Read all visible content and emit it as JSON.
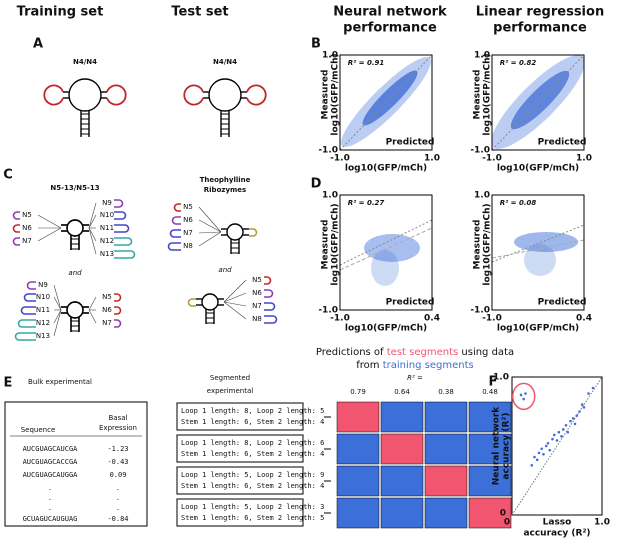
{
  "headers": {
    "training": "Training set",
    "test": "Test set",
    "nn": [
      "Neural network",
      "performance"
    ],
    "lr": [
      "Linear regression",
      "performance"
    ]
  },
  "panels": {
    "A": "A",
    "B": "B",
    "C": "C",
    "D": "D",
    "E": "E",
    "F": "F"
  },
  "A": {
    "left": "N4/N4",
    "right": "N4/N4"
  },
  "B": {
    "r2": [
      "R² = 0.91",
      "R² = 0.82"
    ],
    "ylabel": [
      "Measured",
      "log10(GFP/mCh)"
    ],
    "xlabel": [
      "Predicted",
      "log10(GFP/mCh)"
    ],
    "xticks": [
      "-1.0",
      "1.0"
    ],
    "yticks": [
      "-1.0",
      "1.0"
    ]
  },
  "C": {
    "title": "N5-13/N5-13",
    "left_small": [
      "N5",
      "N6",
      "N7"
    ],
    "left_large": [
      "N9",
      "N10",
      "N11",
      "N12",
      "N13"
    ],
    "and": "and",
    "ribozyme_title": [
      "Theophylline",
      "Ribozymes"
    ],
    "ribozyme_loops": [
      "N5",
      "N6",
      "N7",
      "N8"
    ]
  },
  "D": {
    "r2": [
      "R² = 0.27",
      "R² = 0.08"
    ],
    "ylabel": [
      "Measured",
      "log10(GFP/mCh)"
    ],
    "xlabel": [
      "Predicted",
      "log10(GFP/mCh)"
    ],
    "xticks": [
      "-1.0",
      "0.4"
    ],
    "yticks": [
      "-1.0",
      "1.0"
    ]
  },
  "E": {
    "bulk_title": "Bulk experimental",
    "table": {
      "header": [
        "Sequence",
        [
          "Basal",
          "Expression"
        ]
      ],
      "rows": [
        [
          "AUCGUAGCAUCGA",
          "-1.23"
        ],
        [
          "AUCGUAGCACCGA",
          "-0.43"
        ],
        [
          "AUCGUAGCAUGGA",
          "0.09"
        ],
        [
          ".",
          "."
        ],
        [
          ".",
          "."
        ],
        [
          ".",
          "."
        ],
        [
          "GCUAGUCAUGUAG",
          "-0.84"
        ]
      ]
    },
    "segmented_title": [
      "Segmented",
      "experimental"
    ],
    "segments": [
      [
        "Loop 1 length: 8, Loop 2 length: 5",
        "Stem 1 length: 6, Stem 2 length: 4"
      ],
      [
        "Loop 1 length: 8, Loop 2 length: 6",
        "Stem 1 length: 6, Stem 2 length: 4"
      ],
      [
        "Loop 1 length: 5, Loop 2 length: 9",
        "Stem 1 length: 6, Stem 2 length: 4"
      ],
      [
        "Loop 1 length: 5, Loop 2 length: 3",
        "Stem 1 length: 6, Stem 2 length: 5"
      ]
    ],
    "predictions_title": [
      "Predictions of ",
      "test segments",
      " using data",
      "from ",
      "training segments"
    ],
    "r2_label": "R² =",
    "r2_values": [
      "0.79",
      "0.64",
      "0.38",
      "0.48"
    ]
  },
  "F": {
    "ylabel": [
      "Neural network",
      "accuracy (R²)"
    ],
    "xlabel": [
      "Lasso",
      "accuracy (R²)"
    ],
    "xticks": [
      "0",
      "1.0"
    ],
    "yticks": [
      "0",
      "1.0"
    ],
    "xlim": [
      0,
      1
    ],
    "ylim": [
      0,
      1
    ],
    "x": [
      0.1,
      0.13,
      0.15,
      0.22,
      0.25,
      0.28,
      0.3,
      0.33,
      0.35,
      0.38,
      0.4,
      0.42,
      0.45,
      0.47,
      0.5,
      0.52,
      0.55,
      0.57,
      0.6,
      0.62,
      0.65,
      0.68,
      0.7,
      0.72,
      0.75,
      0.78,
      0.8,
      0.85,
      0.9
    ],
    "y": [
      0.87,
      0.84,
      0.88,
      0.36,
      0.42,
      0.4,
      0.45,
      0.48,
      0.44,
      0.5,
      0.52,
      0.47,
      0.55,
      0.58,
      0.54,
      0.6,
      0.57,
      0.62,
      0.65,
      0.6,
      0.68,
      0.7,
      0.66,
      0.72,
      0.75,
      0.8,
      0.78,
      0.88,
      0.92
    ]
  }
}
